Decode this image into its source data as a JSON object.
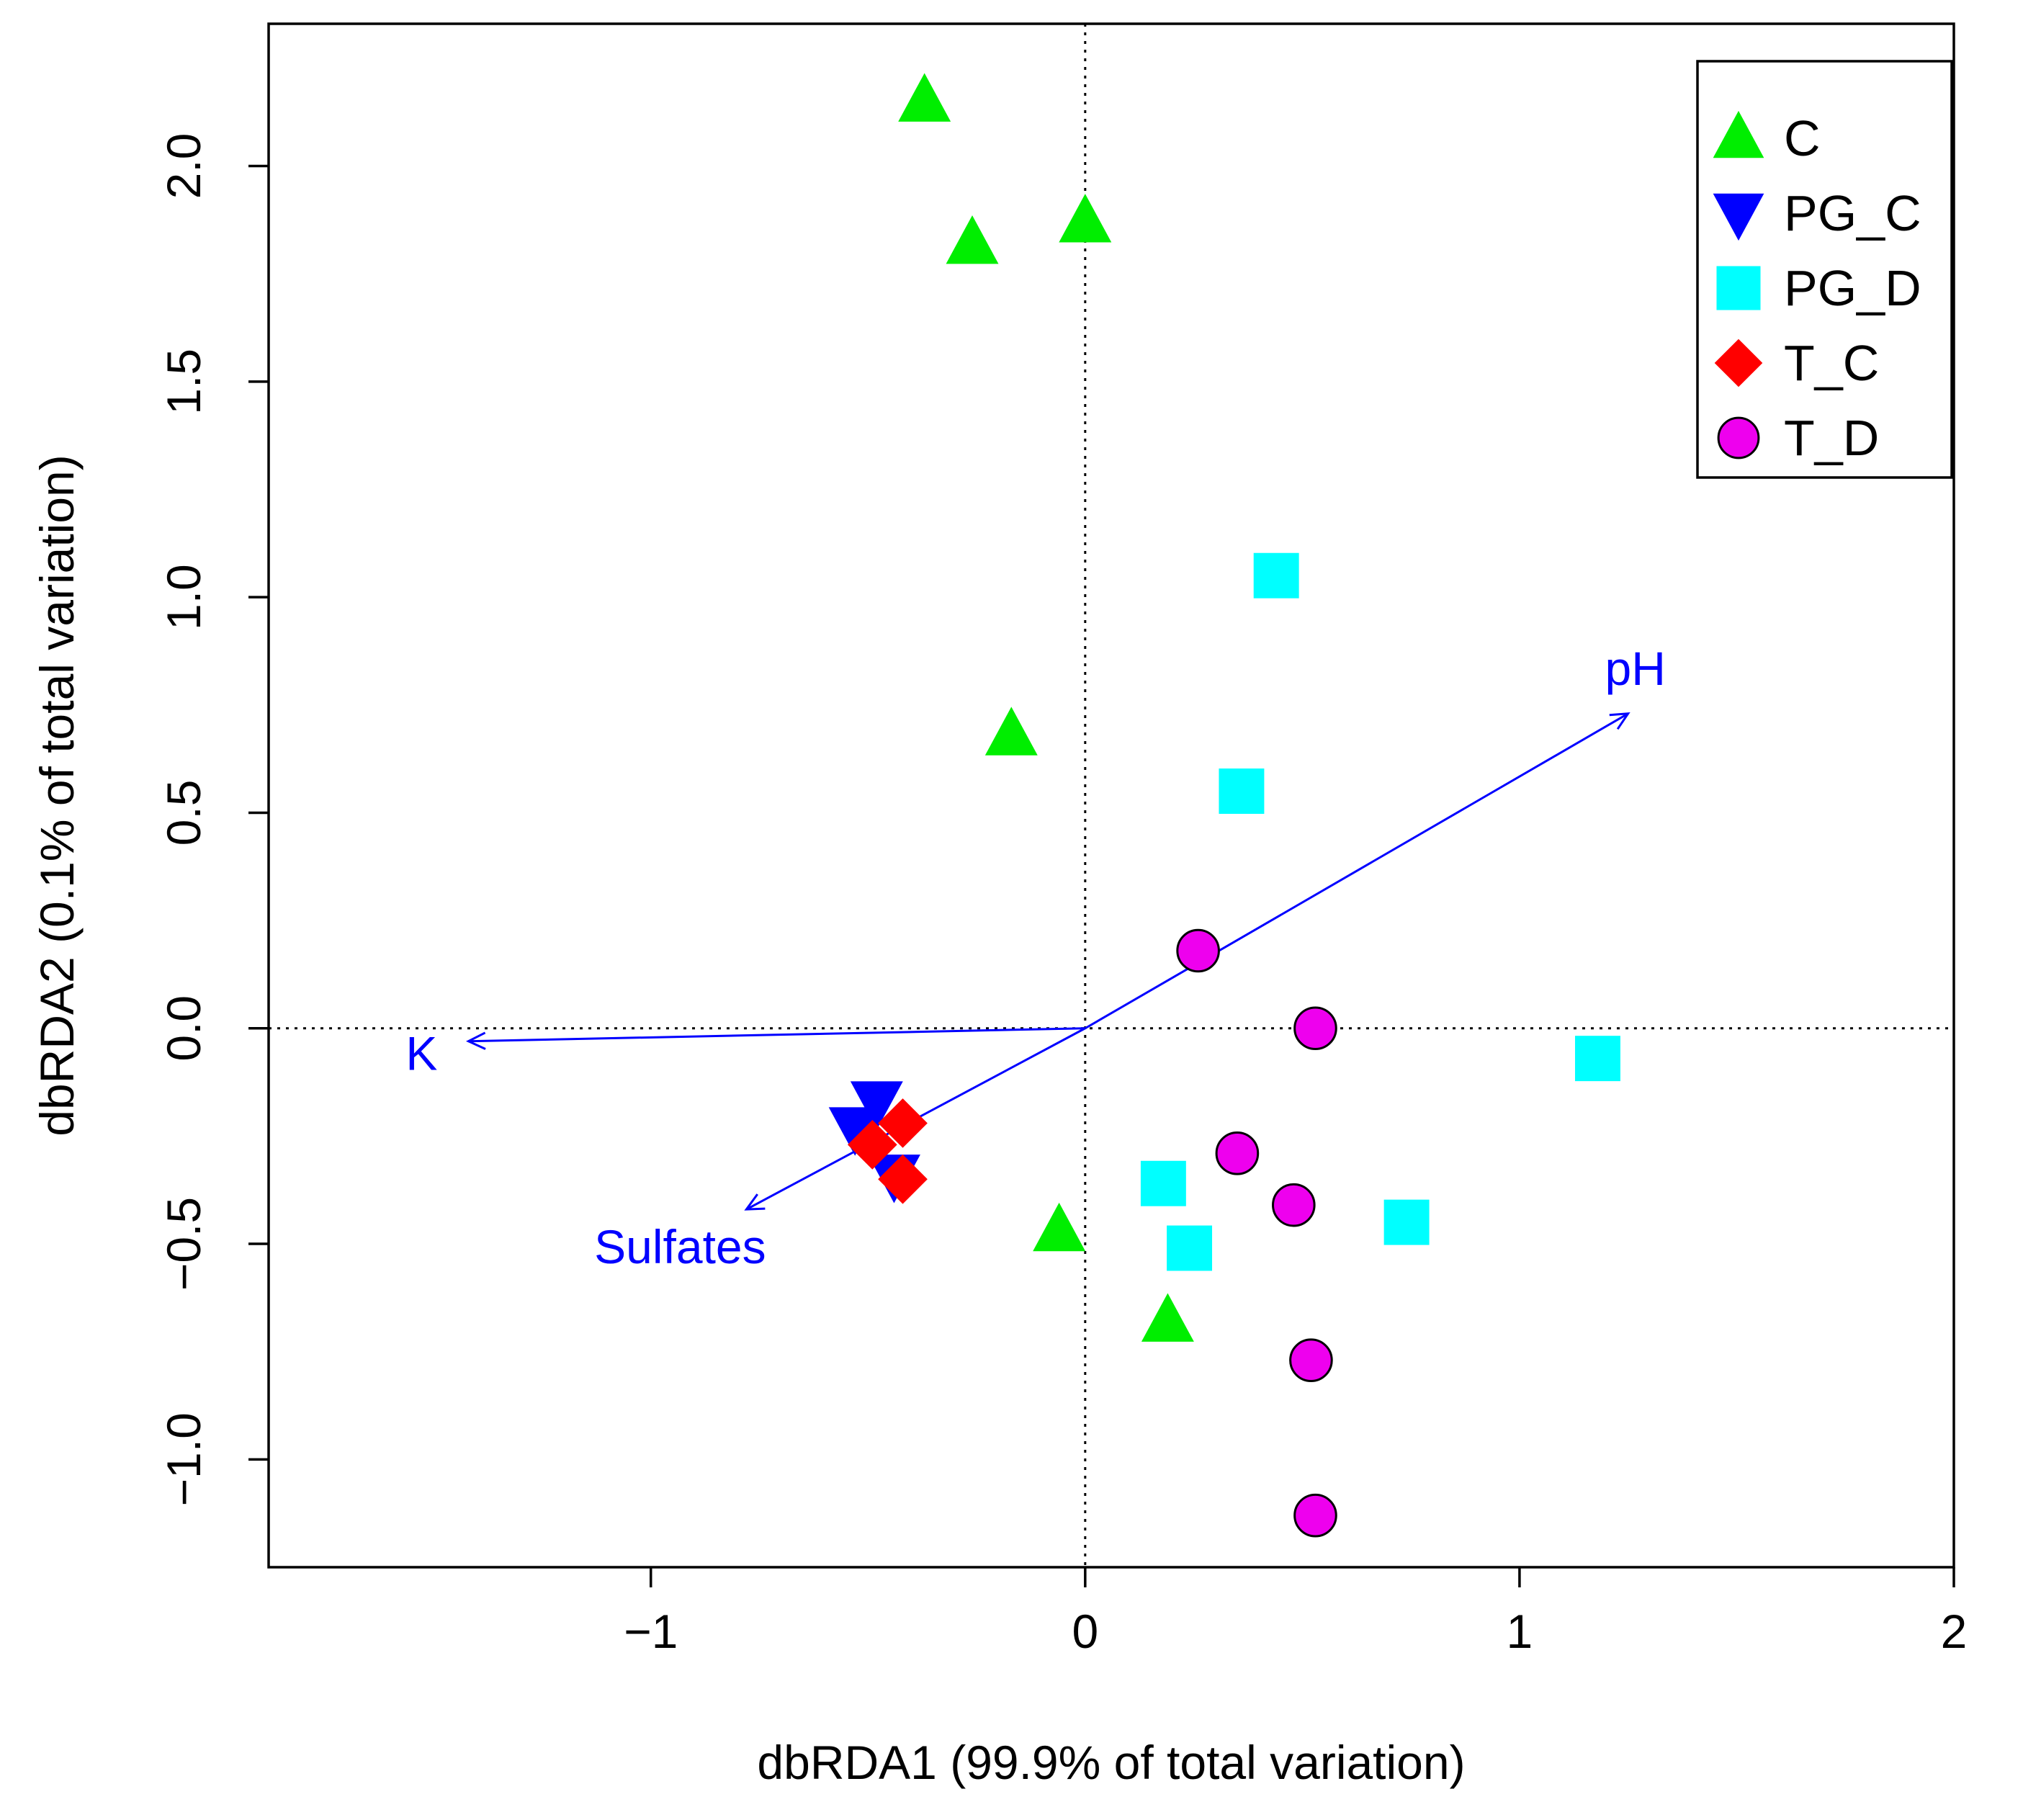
{
  "chart_data": {
    "type": "scatter",
    "title": "",
    "xlabel": "dbRDA1 (99.9% of total variation)",
    "ylabel": "dbRDA2 (0.1% of total variation)",
    "xlim": [
      -1.88,
      2.0
    ],
    "ylim": [
      -1.25,
      2.33
    ],
    "x_ticks": [
      -1,
      0,
      1,
      2
    ],
    "x_tick_labels": [
      "−1",
      "0",
      "1",
      "2"
    ],
    "y_ticks": [
      -1.0,
      -0.5,
      0.0,
      0.5,
      1.0,
      1.5,
      2.0
    ],
    "y_tick_labels": [
      "−1.0",
      "−0.5",
      "0.0",
      "0.5",
      "1.0",
      "1.5",
      "2.0"
    ],
    "reference_lines": {
      "x": 0,
      "y": 0,
      "style": "dotted"
    },
    "legend_position": "top-right",
    "series": [
      {
        "name": "C",
        "marker": "triangle-up",
        "color": "#00ee00",
        "border": "#00ee00",
        "points": [
          [
            -0.37,
            2.15
          ],
          [
            -0.26,
            1.82
          ],
          [
            0.0,
            1.87
          ],
          [
            -0.17,
            0.68
          ],
          [
            -0.06,
            -0.47
          ],
          [
            0.19,
            -0.68
          ]
        ]
      },
      {
        "name": "PG_C",
        "marker": "triangle-down",
        "color": "#0000ff",
        "border": "#0000ff",
        "points": [
          [
            -0.48,
            -0.17
          ],
          [
            -0.53,
            -0.23
          ],
          [
            -0.44,
            -0.34
          ]
        ]
      },
      {
        "name": "PG_D",
        "marker": "square",
        "color": "#00ffff",
        "border": "#00ffff",
        "points": [
          [
            0.44,
            1.05
          ],
          [
            0.36,
            0.55
          ],
          [
            1.18,
            -0.07
          ],
          [
            0.18,
            -0.36
          ],
          [
            0.24,
            -0.51
          ],
          [
            0.74,
            -0.45
          ]
        ]
      },
      {
        "name": "T_C",
        "marker": "diamond",
        "color": "#ff0000",
        "border": "#ff0000",
        "points": [
          [
            -0.42,
            -0.22
          ],
          [
            -0.49,
            -0.27
          ],
          [
            -0.42,
            -0.35
          ]
        ]
      },
      {
        "name": "T_D",
        "marker": "circle",
        "color": "#ee00ee",
        "border": "#000000",
        "points": [
          [
            0.26,
            0.18
          ],
          [
            0.53,
            0.0
          ],
          [
            0.35,
            -0.29
          ],
          [
            0.48,
            -0.41
          ],
          [
            0.52,
            -0.77
          ],
          [
            0.53,
            -1.13
          ]
        ]
      }
    ],
    "vectors": [
      {
        "name": "pH",
        "x": 1.25,
        "y": 0.73,
        "color": "#0000ff"
      },
      {
        "name": "K",
        "x": -1.42,
        "y": -0.03,
        "color": "#0000ff"
      },
      {
        "name": "Sulfates",
        "x": -0.78,
        "y": -0.42,
        "color": "#0000ff"
      }
    ]
  }
}
